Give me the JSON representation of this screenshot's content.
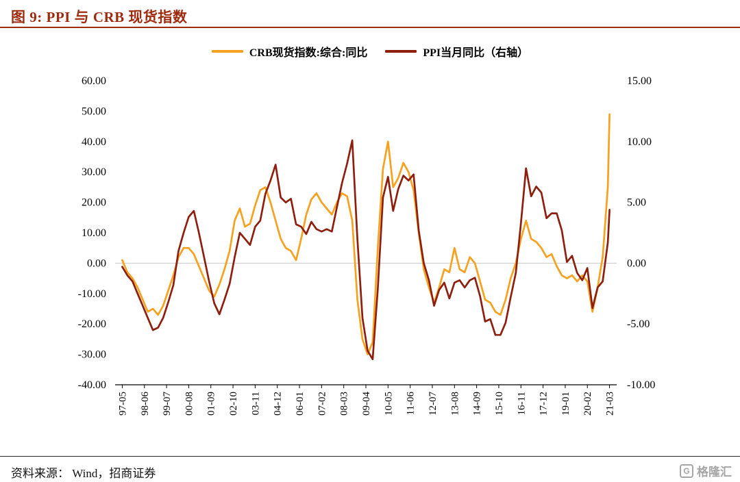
{
  "title": {
    "text": "图 9: PPI 与 CRB 现货指数"
  },
  "legend": [
    {
      "label": "CRB现货指数:综合:同比",
      "color": "#F6A11F"
    },
    {
      "label": "PPI当月同比（右轴）",
      "color": "#8E1F0E"
    }
  ],
  "footer": {
    "source": "资料来源： Wind，招商证券",
    "brand": "格隆汇",
    "brand_icon": "G"
  },
  "colors": {
    "title": "#9E2B0E",
    "crb_line": "#F6A11F",
    "ppi_line": "#8E1F0E",
    "zero_line": "#C8C8C8",
    "axis": "#000000",
    "brand_gray": "#A6A6A6"
  },
  "chart_data": {
    "type": "line",
    "title": "图 9: PPI 与 CRB 现货指数",
    "legend_position": "top-center",
    "grid": "zero-line-only",
    "x_tick_labels": [
      "97-05",
      "98-06",
      "99-07",
      "00-08",
      "01-09",
      "02-10",
      "03-11",
      "04-12",
      "06-01",
      "07-02",
      "08-03",
      "09-04",
      "10-05",
      "11-06",
      "12-07",
      "13-08",
      "14-09",
      "15-10",
      "16-11",
      "17-12",
      "19-01",
      "20-02",
      "21-03"
    ],
    "left_axis": {
      "min": -40,
      "max": 60,
      "step": 10,
      "tick_labels": [
        "60.00",
        "50.00",
        "40.00",
        "30.00",
        "20.00",
        "10.00",
        "0.00",
        "-10.00",
        "-20.00",
        "-30.00",
        "-40.00"
      ]
    },
    "right_axis": {
      "min": -10,
      "max": 15,
      "step": 5,
      "tick_labels": [
        "15.00",
        "10.00",
        "5.00",
        "0.00",
        "-5.00",
        "-10.00"
      ]
    },
    "dates": [
      "97-05",
      "97-08",
      "97-11",
      "98-02",
      "98-05",
      "98-08",
      "98-11",
      "99-02",
      "99-05",
      "99-08",
      "99-11",
      "00-02",
      "00-05",
      "00-08",
      "00-11",
      "01-02",
      "01-05",
      "01-08",
      "01-11",
      "02-02",
      "02-05",
      "02-08",
      "02-11",
      "03-02",
      "03-05",
      "03-08",
      "03-11",
      "04-02",
      "04-05",
      "04-08",
      "04-11",
      "05-02",
      "05-05",
      "05-08",
      "05-11",
      "06-02",
      "06-05",
      "06-08",
      "06-11",
      "07-02",
      "07-05",
      "07-08",
      "07-11",
      "08-02",
      "08-05",
      "08-08",
      "08-11",
      "09-02",
      "09-05",
      "09-08",
      "09-11",
      "10-02",
      "10-05",
      "10-08",
      "10-11",
      "11-02",
      "11-05",
      "11-08",
      "11-11",
      "12-02",
      "12-05",
      "12-08",
      "12-11",
      "13-02",
      "13-05",
      "13-08",
      "13-11",
      "14-02",
      "14-05",
      "14-08",
      "14-11",
      "15-02",
      "15-05",
      "15-08",
      "15-11",
      "16-02",
      "16-05",
      "16-08",
      "16-11",
      "17-02",
      "17-05",
      "17-08",
      "17-11",
      "18-02",
      "18-05",
      "18-08",
      "18-11",
      "19-02",
      "19-05",
      "19-08",
      "19-11",
      "20-02",
      "20-05",
      "20-08",
      "20-11",
      "21-02",
      "21-03"
    ],
    "series": [
      {
        "name": "CRB现货指数:综合:同比",
        "axis": "left",
        "color": "#F6A11F",
        "values": [
          1,
          -3,
          -5,
          -8,
          -12,
          -16,
          -15,
          -17,
          -14,
          -9,
          -4,
          2,
          5,
          5,
          3,
          -1,
          -5,
          -9,
          -11,
          -7,
          -2,
          4,
          14,
          18,
          12,
          13,
          19,
          24,
          25,
          20,
          14,
          8,
          5,
          4,
          1,
          8,
          16,
          21,
          23,
          20,
          18,
          16,
          20,
          23,
          22,
          14,
          -12,
          -25,
          -30,
          -26,
          5,
          31,
          40,
          25,
          28,
          33,
          30,
          24,
          10,
          -2,
          -8,
          -13,
          -8,
          -2,
          -3,
          5,
          -2,
          -3,
          2,
          0,
          -6,
          -12,
          -13,
          -16,
          -17,
          -12,
          -5,
          0,
          8,
          14,
          8,
          7,
          5,
          2,
          3,
          -1,
          -4,
          -5,
          -4,
          -6,
          -4,
          -6,
          -16,
          -8,
          2,
          25,
          49
        ]
      },
      {
        "name": "PPI当月同比（右轴）",
        "axis": "right",
        "color": "#8E1F0E",
        "values": [
          -0.3,
          -1.0,
          -1.5,
          -2.5,
          -3.5,
          -4.5,
          -5.5,
          -5.3,
          -4.5,
          -3.2,
          -1.8,
          1.0,
          2.5,
          3.8,
          4.3,
          2.5,
          0.5,
          -1.5,
          -3.3,
          -4.2,
          -3.0,
          -1.7,
          0.5,
          2.5,
          2.0,
          1.5,
          3.0,
          3.5,
          5.7,
          6.8,
          8.1,
          5.4,
          5.0,
          5.3,
          3.2,
          3.0,
          2.4,
          3.4,
          2.8,
          2.6,
          2.8,
          2.6,
          4.6,
          6.6,
          8.2,
          10.1,
          2.0,
          -4.5,
          -7.2,
          -7.9,
          -2.1,
          5.4,
          7.1,
          4.3,
          6.1,
          7.2,
          6.8,
          7.3,
          2.7,
          0.0,
          -1.4,
          -3.5,
          -2.2,
          -1.6,
          -2.9,
          -1.6,
          -1.4,
          -2.0,
          -1.4,
          -1.2,
          -2.7,
          -4.8,
          -4.6,
          -5.9,
          -5.9,
          -4.9,
          -2.8,
          -0.8,
          3.3,
          7.8,
          5.5,
          6.3,
          5.8,
          3.7,
          4.1,
          4.1,
          2.7,
          0.1,
          0.6,
          -0.8,
          -1.4,
          -0.4,
          -3.7,
          -2.0,
          -1.5,
          1.7,
          4.4
        ]
      }
    ]
  }
}
